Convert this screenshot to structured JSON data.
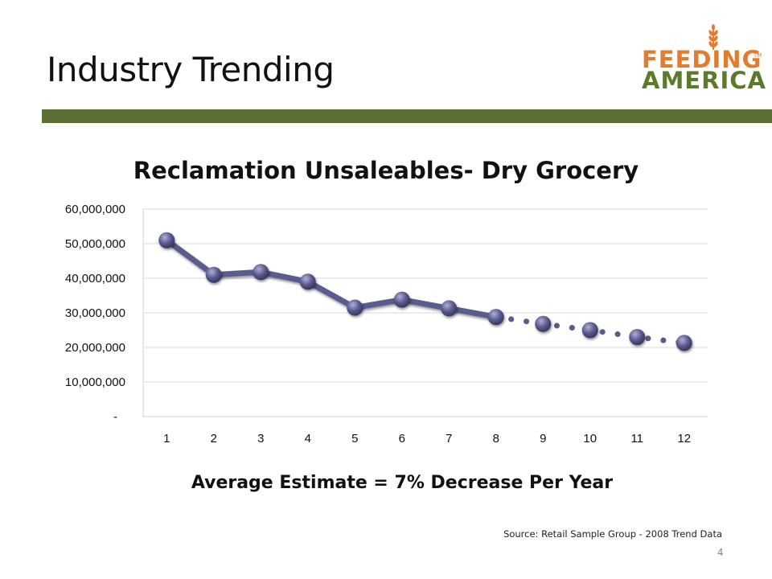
{
  "slide": {
    "title": "Industry Trending",
    "page_number": "4",
    "estimate_text": "Average Estimate  =  7% Decrease Per Year",
    "source_text": "Source: Retail Sample Group - 2008 Trend Data",
    "header_bar_color": "#5a6e35"
  },
  "logo": {
    "line1": "FEEDING",
    "line2": "AMERICA",
    "tm": "TM",
    "icon": "wheat-icon",
    "color_orange": "#e27d2f",
    "color_green": "#5c7a2c"
  },
  "chart_data": {
    "type": "line",
    "title": "Reclamation Unsaleables- Dry Grocery",
    "xlabel": "",
    "ylabel": "",
    "categories": [
      "1",
      "2",
      "3",
      "4",
      "5",
      "6",
      "7",
      "8",
      "9",
      "10",
      "11",
      "12"
    ],
    "ylim": [
      0,
      60000000
    ],
    "y_ticks": [
      0,
      10000000,
      20000000,
      30000000,
      40000000,
      50000000,
      60000000
    ],
    "y_tick_labels": [
      "-",
      "10,000,000",
      "20,000,000",
      "30,000,000",
      "40,000,000",
      "50,000,000",
      "60,000,000"
    ],
    "grid": true,
    "series": [
      {
        "values": [
          51000000,
          41000000,
          41800000,
          39000000,
          31500000,
          33800000,
          31300000,
          28800000,
          26800000,
          25000000,
          23000000,
          21300000
        ],
        "actual_through_index": 7,
        "color": "#5a5b8d"
      }
    ]
  }
}
